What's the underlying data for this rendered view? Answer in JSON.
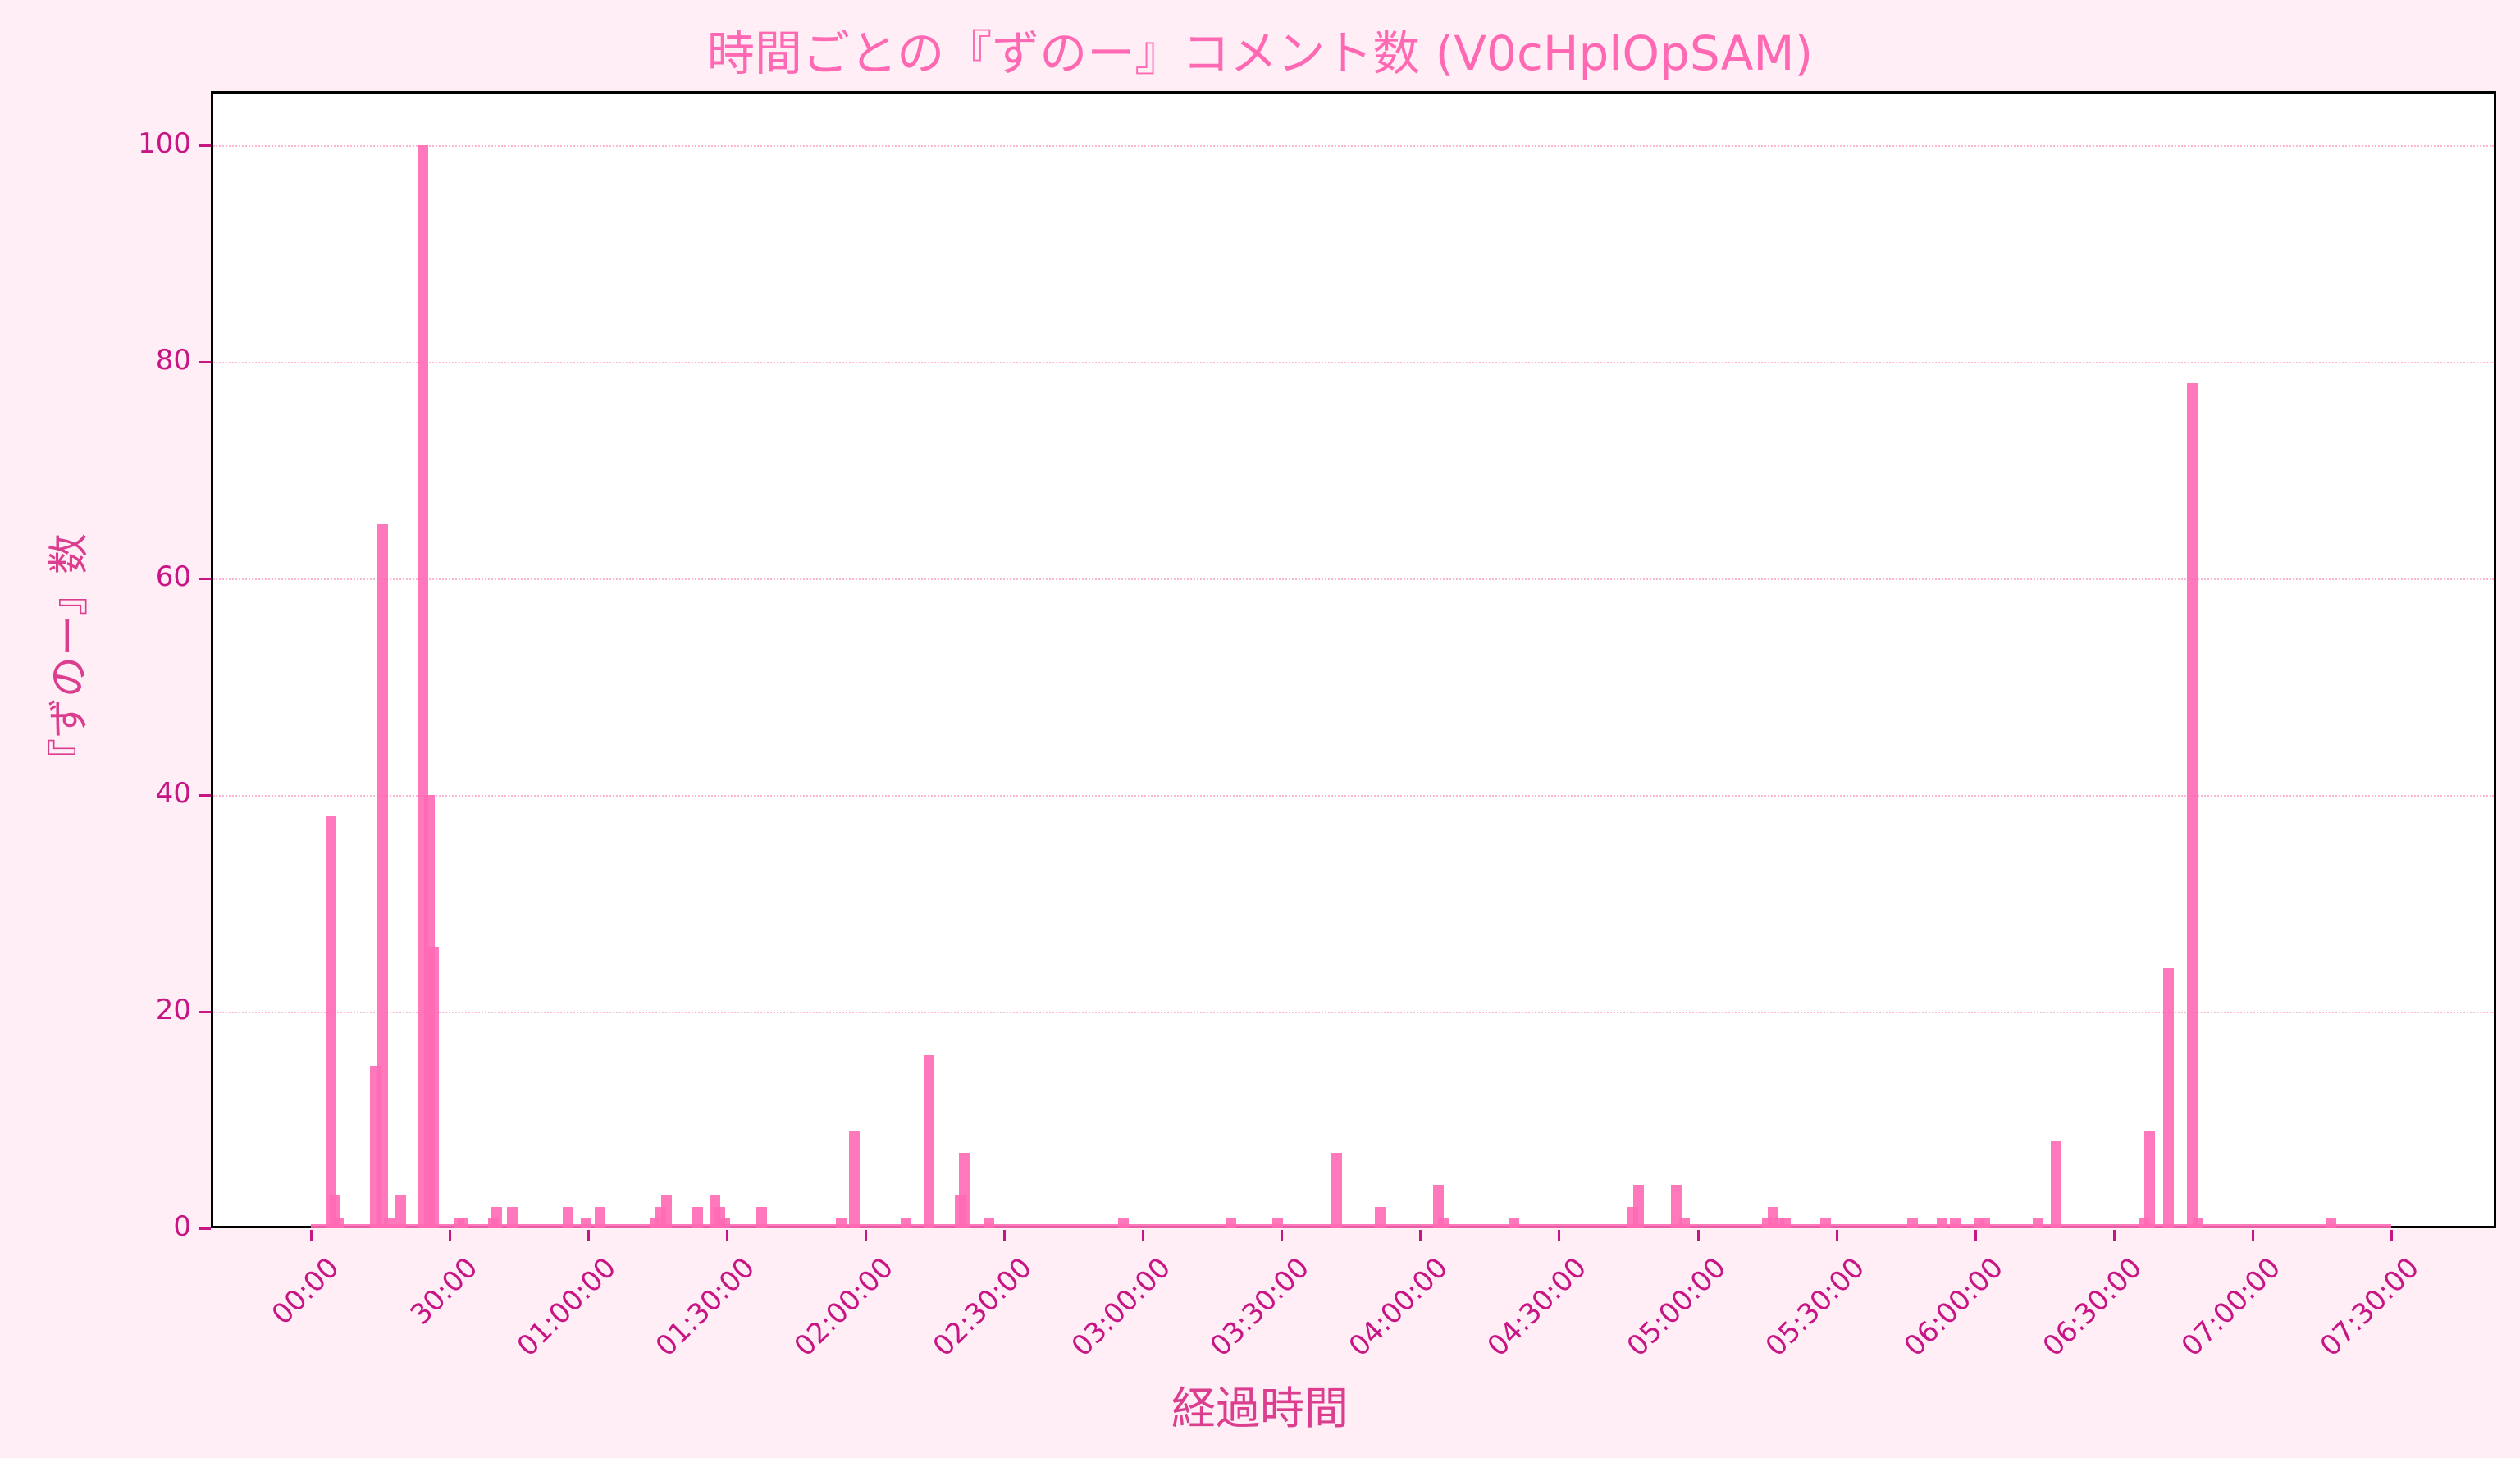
{
  "chart_data": {
    "type": "bar",
    "title": "時間ごとの『ずのー』コメント数 (V0cHplOpSAM)",
    "xlabel": "経過時間",
    "ylabel": "『ずのー』数",
    "ylim": [
      0,
      105
    ],
    "xlim_minutes": [
      -10,
      450
    ],
    "yticks": [
      0,
      20,
      40,
      60,
      80,
      100
    ],
    "xticks": [
      {
        "minute": 0,
        "label": "00:00"
      },
      {
        "minute": 30,
        "label": "30:00"
      },
      {
        "minute": 60,
        "label": "01:00:00"
      },
      {
        "minute": 90,
        "label": "01:30:00"
      },
      {
        "minute": 120,
        "label": "02:00:00"
      },
      {
        "minute": 150,
        "label": "02:30:00"
      },
      {
        "minute": 180,
        "label": "03:00:00"
      },
      {
        "minute": 210,
        "label": "03:30:00"
      },
      {
        "minute": 240,
        "label": "04:00:00"
      },
      {
        "minute": 270,
        "label": "04:30:00"
      },
      {
        "minute": 300,
        "label": "05:00:00"
      },
      {
        "minute": 330,
        "label": "05:30:00"
      },
      {
        "minute": 360,
        "label": "06:00:00"
      },
      {
        "minute": 390,
        "label": "06:30:00"
      },
      {
        "minute": 420,
        "label": "07:00:00"
      },
      {
        "minute": 450,
        "label": "07:30:00"
      }
    ],
    "grid": {
      "y": true,
      "x": false,
      "style": "dotted"
    },
    "colors": {
      "bar": "#ff69b4",
      "tick_text": "#c71585",
      "label_text": "#db3d8f",
      "background": "#ffeef5",
      "grid": "#ffb6d5"
    },
    "data_range_minutes": [
      0,
      450
    ],
    "series": [
      {
        "name": "『ずのー』数",
        "points": [
          [
            4.4,
            38
          ],
          [
            5.3,
            3
          ],
          [
            6,
            1
          ],
          [
            14,
            15
          ],
          [
            15.5,
            65
          ],
          [
            17,
            1
          ],
          [
            19.4,
            3
          ],
          [
            24.3,
            100
          ],
          [
            25.6,
            40
          ],
          [
            26.5,
            26
          ],
          [
            32,
            1
          ],
          [
            33,
            1
          ],
          [
            39.4,
            1
          ],
          [
            40.2,
            2
          ],
          [
            43.5,
            2
          ],
          [
            55.6,
            2
          ],
          [
            59.5,
            1
          ],
          [
            62.5,
            2
          ],
          [
            74.4,
            1
          ],
          [
            75.7,
            2
          ],
          [
            77,
            3
          ],
          [
            83.7,
            2
          ],
          [
            87.4,
            3
          ],
          [
            88.4,
            2
          ],
          [
            89.6,
            1
          ],
          [
            97.5,
            2
          ],
          [
            114.7,
            1
          ],
          [
            117.6,
            9
          ],
          [
            128.8,
            1
          ],
          [
            133.7,
            16
          ],
          [
            140.5,
            3
          ],
          [
            141.4,
            7
          ],
          [
            146.7,
            1
          ],
          [
            175.8,
            1
          ],
          [
            199,
            1
          ],
          [
            209.2,
            1
          ],
          [
            222,
            7
          ],
          [
            231.3,
            2
          ],
          [
            244,
            4
          ],
          [
            245,
            1
          ],
          [
            260.2,
            1
          ],
          [
            286,
            2
          ],
          [
            287.2,
            4
          ],
          [
            295.4,
            4
          ],
          [
            297.2,
            1
          ],
          [
            315,
            1
          ],
          [
            316.4,
            2
          ],
          [
            317.6,
            1
          ],
          [
            319,
            1
          ],
          [
            327.7,
            1
          ],
          [
            346.5,
            1
          ],
          [
            352.8,
            1
          ],
          [
            355.8,
            1
          ],
          [
            360.8,
            1
          ],
          [
            362.2,
            1
          ],
          [
            373.7,
            1
          ],
          [
            377.6,
            8
          ],
          [
            396.6,
            1
          ],
          [
            397.7,
            9
          ],
          [
            401.8,
            24
          ],
          [
            407,
            78
          ],
          [
            408.2,
            1
          ],
          [
            437,
            1
          ]
        ]
      }
    ]
  }
}
